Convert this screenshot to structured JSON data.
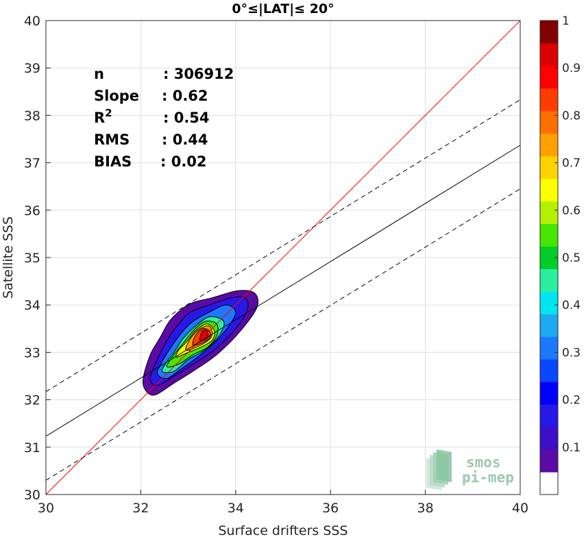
{
  "chart_data": {
    "type": "contour-scatter",
    "title": "0°≤|LAT|≤ 20°",
    "xlabel": "Surface drifters SSS",
    "ylabel": "Satellite SSS",
    "xlim": [
      30,
      40
    ],
    "ylim": [
      30,
      40
    ],
    "xticks": [
      "30",
      "32",
      "34",
      "36",
      "38",
      "40"
    ],
    "yticks": [
      "30",
      "31",
      "32",
      "33",
      "34",
      "35",
      "36",
      "37",
      "38",
      "39",
      "40"
    ],
    "grid": true,
    "stats": [
      {
        "label": "n",
        "value": ": 306912"
      },
      {
        "label": "Slope",
        "value": ": 0.62"
      },
      {
        "label": "R",
        "sup": "2",
        "value": ": 0.54"
      },
      {
        "label": "RMS",
        "value": ": 0.44"
      },
      {
        "label": "BIAS",
        "value": ": 0.02"
      }
    ],
    "lines": [
      {
        "name": "identity",
        "color": "#ff0000",
        "style": "solid",
        "x": [
          30,
          40
        ],
        "y": [
          30,
          40
        ]
      },
      {
        "name": "regression",
        "color": "#000000",
        "style": "solid",
        "x": [
          30,
          40
        ],
        "y": [
          31.23,
          37.37
        ]
      },
      {
        "name": "upper-bound",
        "color": "#000000",
        "style": "dashed",
        "x": [
          30,
          40
        ],
        "y": [
          32.17,
          38.33
        ]
      },
      {
        "name": "lower-bound",
        "color": "#000000",
        "style": "dashed",
        "x": [
          30,
          40
        ],
        "y": [
          30.3,
          36.45
        ]
      }
    ],
    "density": {
      "center": [
        33.35,
        33.35
      ],
      "levels": [
        0.05,
        0.1,
        0.15,
        0.2,
        0.25,
        0.3,
        0.35,
        0.4,
        0.45,
        0.5,
        0.55,
        0.6,
        0.65,
        0.7,
        0.75,
        0.8,
        0.85,
        0.9,
        0.95
      ],
      "contours": [
        {
          "level": 0.05,
          "points": [
            [
              32.05,
              32.45
            ],
            [
              32.1,
              32.2
            ],
            [
              32.3,
              32.1
            ],
            [
              32.7,
              32.35
            ],
            [
              33.1,
              32.6
            ],
            [
              33.6,
              32.95
            ],
            [
              34.1,
              33.45
            ],
            [
              34.45,
              33.95
            ],
            [
              34.4,
              34.25
            ],
            [
              34.05,
              34.3
            ],
            [
              33.5,
              34.15
            ],
            [
              33.1,
              34.05
            ],
            [
              32.85,
              33.9
            ],
            [
              32.6,
              33.65
            ],
            [
              32.4,
              33.3
            ],
            [
              32.2,
              32.95
            ]
          ]
        },
        {
          "level": 0.15,
          "points": [
            [
              32.2,
              32.45
            ],
            [
              32.35,
              32.3
            ],
            [
              32.7,
              32.5
            ],
            [
              33.1,
              32.75
            ],
            [
              33.55,
              33.05
            ],
            [
              34.0,
              33.5
            ],
            [
              34.25,
              33.9
            ],
            [
              34.2,
              34.15
            ],
            [
              33.9,
              34.15
            ],
            [
              33.45,
              34.0
            ],
            [
              33.05,
              33.85
            ],
            [
              32.8,
              33.6
            ],
            [
              32.55,
              33.25
            ],
            [
              32.35,
              32.85
            ]
          ]
        },
        {
          "level": 0.3,
          "points": [
            [
              32.35,
              32.55
            ],
            [
              32.55,
              32.45
            ],
            [
              32.85,
              32.65
            ],
            [
              33.2,
              32.9
            ],
            [
              33.55,
              33.2
            ],
            [
              33.85,
              33.55
            ],
            [
              34.0,
              33.85
            ],
            [
              33.8,
              34.0
            ],
            [
              33.45,
              33.85
            ],
            [
              33.1,
              33.65
            ],
            [
              32.85,
              33.4
            ],
            [
              32.6,
              33.05
            ],
            [
              32.45,
              32.8
            ]
          ]
        },
        {
          "level": 0.45,
          "points": [
            [
              32.45,
              32.6
            ],
            [
              32.7,
              32.6
            ],
            [
              33.0,
              32.85
            ],
            [
              33.35,
              33.05
            ],
            [
              33.65,
              33.35
            ],
            [
              33.75,
              33.65
            ],
            [
              33.45,
              33.75
            ],
            [
              33.15,
              33.55
            ],
            [
              32.9,
              33.3
            ],
            [
              32.7,
              33.0
            ],
            [
              32.55,
              32.8
            ]
          ]
        },
        {
          "level": 0.55,
          "points": [
            [
              32.55,
              32.7
            ],
            [
              32.8,
              32.75
            ],
            [
              33.1,
              32.95
            ],
            [
              33.4,
              33.1
            ],
            [
              33.6,
              33.35
            ],
            [
              33.6,
              33.6
            ],
            [
              33.35,
              33.65
            ],
            [
              33.1,
              33.45
            ],
            [
              32.9,
              33.2
            ],
            [
              32.7,
              32.95
            ]
          ]
        },
        {
          "level": 0.65,
          "points": [
            [
              32.75,
              32.9
            ],
            [
              33.0,
              33.0
            ],
            [
              33.25,
              33.1
            ],
            [
              33.5,
              33.25
            ],
            [
              33.55,
              33.45
            ],
            [
              33.4,
              33.6
            ],
            [
              33.15,
              33.45
            ],
            [
              32.95,
              33.2
            ],
            [
              32.8,
              33.05
            ]
          ]
        },
        {
          "level": 0.75,
          "points": [
            [
              32.95,
              33.05
            ],
            [
              33.15,
              33.1
            ],
            [
              33.35,
              33.2
            ],
            [
              33.5,
              33.35
            ],
            [
              33.45,
              33.55
            ],
            [
              33.25,
              33.5
            ],
            [
              33.05,
              33.3
            ]
          ]
        },
        {
          "level": 0.85,
          "points": [
            [
              33.1,
              33.15
            ],
            [
              33.3,
              33.2
            ],
            [
              33.45,
              33.3
            ],
            [
              33.45,
              33.45
            ],
            [
              33.3,
              33.5
            ],
            [
              33.15,
              33.35
            ]
          ]
        },
        {
          "level": 0.95,
          "points": [
            [
              33.25,
              33.25
            ],
            [
              33.4,
              33.3
            ],
            [
              33.4,
              33.45
            ],
            [
              33.3,
              33.45
            ]
          ]
        }
      ]
    },
    "colorbar": {
      "ticks": [
        "0.1",
        "0.2",
        "0.3",
        "0.4",
        "0.5",
        "0.6",
        "0.7",
        "0.8",
        "0.9",
        "1"
      ],
      "range": [
        0,
        1
      ],
      "colors": [
        "#ffffff",
        "#5a0aa5",
        "#3c0fc8",
        "#2818e6",
        "#0000ff",
        "#0a46ff",
        "#1e78ff",
        "#1eaaf0",
        "#00e6f0",
        "#28f0a0",
        "#00cd28",
        "#46e600",
        "#b4f000",
        "#ffff00",
        "#ffd200",
        "#ffa000",
        "#ff6e00",
        "#ff3c00",
        "#ff0000",
        "#dc0000",
        "#820000"
      ]
    },
    "logo_text": [
      "smos",
      "pi-mep"
    ]
  }
}
